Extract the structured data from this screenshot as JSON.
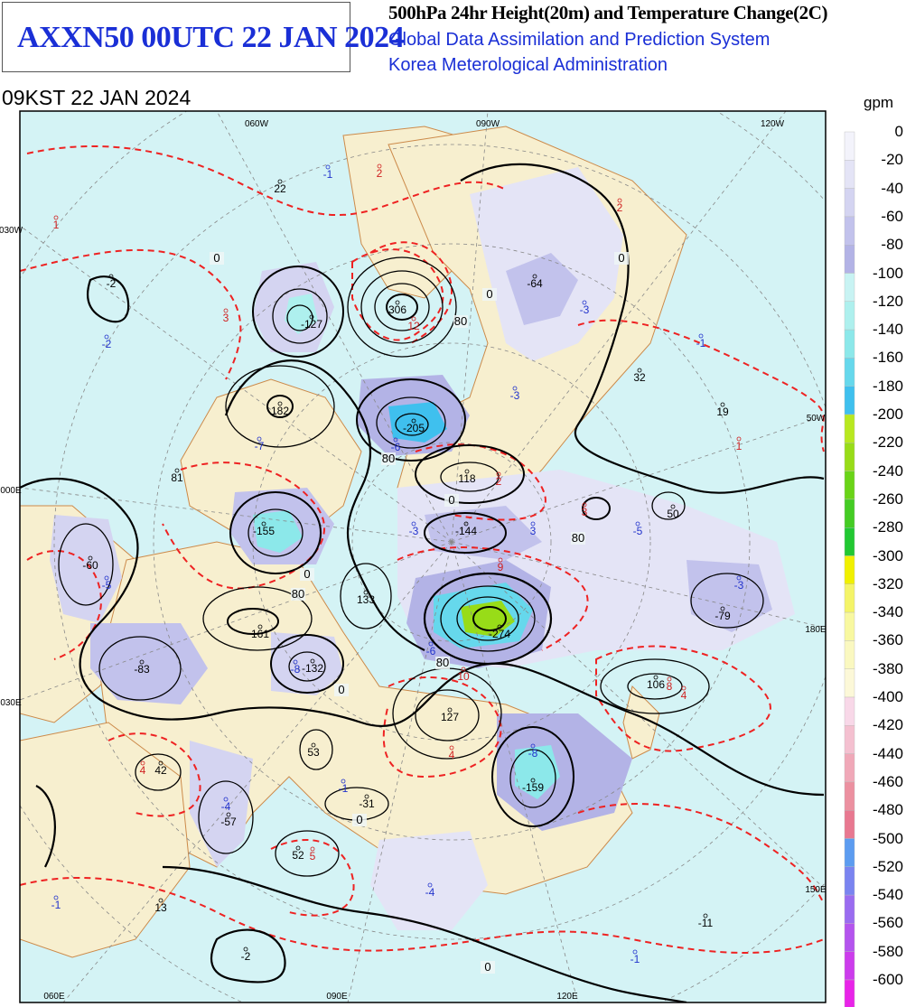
{
  "header": {
    "product": "AXXN50 00UTC 22 JAN 2024",
    "chart_title": "500hPa 24hr Height(20m) and Temperature Change(2C)",
    "system": "Global Data Assimilation and Prediction System",
    "agency": "Korea Meterological Administration",
    "valid_time": "09KST 22 JAN 2024"
  },
  "legend": {
    "unit": "gpm",
    "levels": [
      "0",
      "-20",
      "-40",
      "-60",
      "-80",
      "-100",
      "-120",
      "-140",
      "-160",
      "-180",
      "-200",
      "-220",
      "-240",
      "-260",
      "-280",
      "-300",
      "-320",
      "-340",
      "-360",
      "-380",
      "-400",
      "-420",
      "-440",
      "-460",
      "-480",
      "-500",
      "-520",
      "-540",
      "-560",
      "-580",
      "-600"
    ],
    "colors": [
      "#f3f3fb",
      "#e4e4f6",
      "#d4d4f1",
      "#c2c2ec",
      "#b3b3e6",
      "#c8f3f3",
      "#aef0ee",
      "#8ce8ea",
      "#66d8ec",
      "#3fc0ee",
      "#b8e820",
      "#98dc18",
      "#6ad418",
      "#44cc24",
      "#22c832",
      "#f0f000",
      "#f4f468",
      "#f8f8a0",
      "#faf8c0",
      "#fcf8d8",
      "#f8d8e8",
      "#f4c0d0",
      "#f0a8b8",
      "#ec90a0",
      "#e87890",
      "#5c9cf0",
      "#7a84f0",
      "#9a6cf0",
      "#b454ee",
      "#cc3cec",
      "#e824e8"
    ]
  },
  "map": {
    "colors": {
      "ocean": "#d4f3f5",
      "land": "#f7efcf",
      "coast": "#cc8a4a",
      "height_contour": "#000000",
      "temp_contour": "#ee2222",
      "grid": "#888888"
    },
    "edge_labels": {
      "top": [
        "060W",
        "090W",
        "120W"
      ],
      "bottom": [
        "060E",
        "090E",
        "120E"
      ],
      "left": [
        "030W",
        "000E",
        "030E"
      ],
      "right": [
        "50W",
        "180E",
        "150E"
      ]
    },
    "contour_labels": [
      "0",
      "0",
      "0",
      "80",
      "80",
      "80",
      "0",
      "80",
      "0",
      "80",
      "0",
      "0",
      "0"
    ],
    "height_centers": [
      {
        "value": "22",
        "color": "#000"
      },
      {
        "value": "306",
        "color": "#000"
      },
      {
        "value": "-127",
        "color": "#000"
      },
      {
        "value": "-64",
        "color": "#000"
      },
      {
        "value": "-2",
        "color": "#000"
      },
      {
        "value": "182",
        "color": "#000"
      },
      {
        "value": "32",
        "color": "#000"
      },
      {
        "value": "19",
        "color": "#000"
      },
      {
        "value": "-205",
        "color": "#000"
      },
      {
        "value": "118",
        "color": "#000"
      },
      {
        "value": "81",
        "color": "#000"
      },
      {
        "value": "-155",
        "color": "#000"
      },
      {
        "value": "-144",
        "color": "#000"
      },
      {
        "value": "50",
        "color": "#000"
      },
      {
        "value": "-60",
        "color": "#000"
      },
      {
        "value": "133",
        "color": "#000"
      },
      {
        "value": "-274",
        "color": "#000"
      },
      {
        "value": "-79",
        "color": "#000"
      },
      {
        "value": "161",
        "color": "#000"
      },
      {
        "value": "-132",
        "color": "#000"
      },
      {
        "value": "-83",
        "color": "#000"
      },
      {
        "value": "106",
        "color": "#000"
      },
      {
        "value": "127",
        "color": "#000"
      },
      {
        "value": "53",
        "color": "#000"
      },
      {
        "value": "42",
        "color": "#000"
      },
      {
        "value": "-159",
        "color": "#000"
      },
      {
        "value": "-31",
        "color": "#000"
      },
      {
        "value": "-57",
        "color": "#000"
      },
      {
        "value": "52",
        "color": "#000"
      },
      {
        "value": "13",
        "color": "#000"
      },
      {
        "value": "-11",
        "color": "#000"
      },
      {
        "value": "-2",
        "color": "#000"
      }
    ],
    "temp_centers": [
      {
        "value": "1",
        "color": "#d02020"
      },
      {
        "value": "-1",
        "color": "#2233cc"
      },
      {
        "value": "2",
        "color": "#d02020"
      },
      {
        "value": "2",
        "color": "#d02020"
      },
      {
        "value": "-2",
        "color": "#2233cc"
      },
      {
        "value": "3",
        "color": "#d02020"
      },
      {
        "value": "12",
        "color": "#d02020"
      },
      {
        "value": "-3",
        "color": "#2233cc"
      },
      {
        "value": "-1",
        "color": "#2233cc"
      },
      {
        "value": "-3",
        "color": "#2233cc"
      },
      {
        "value": "-7",
        "color": "#2233cc"
      },
      {
        "value": "-6",
        "color": "#2233cc"
      },
      {
        "value": "1",
        "color": "#d02020"
      },
      {
        "value": "2",
        "color": "#d02020"
      },
      {
        "value": "-3",
        "color": "#2233cc"
      },
      {
        "value": "3",
        "color": "#2233cc"
      },
      {
        "value": "3",
        "color": "#d02020"
      },
      {
        "value": "-5",
        "color": "#2233cc"
      },
      {
        "value": "-5",
        "color": "#2233cc"
      },
      {
        "value": "9",
        "color": "#d02020"
      },
      {
        "value": "-3",
        "color": "#2233cc"
      },
      {
        "value": "-6",
        "color": "#2233cc"
      },
      {
        "value": "-8",
        "color": "#2233cc"
      },
      {
        "value": "8",
        "color": "#d02020"
      },
      {
        "value": "10",
        "color": "#d02020"
      },
      {
        "value": "4",
        "color": "#d02020"
      },
      {
        "value": "4",
        "color": "#d02020"
      },
      {
        "value": "4",
        "color": "#d02020"
      },
      {
        "value": "-8",
        "color": "#2233cc"
      },
      {
        "value": "-1",
        "color": "#2233cc"
      },
      {
        "value": "-4",
        "color": "#2233cc"
      },
      {
        "value": "5",
        "color": "#d02020"
      },
      {
        "value": "-1",
        "color": "#2233cc"
      },
      {
        "value": "-4",
        "color": "#2233cc"
      },
      {
        "value": "-1",
        "color": "#2233cc"
      }
    ]
  }
}
